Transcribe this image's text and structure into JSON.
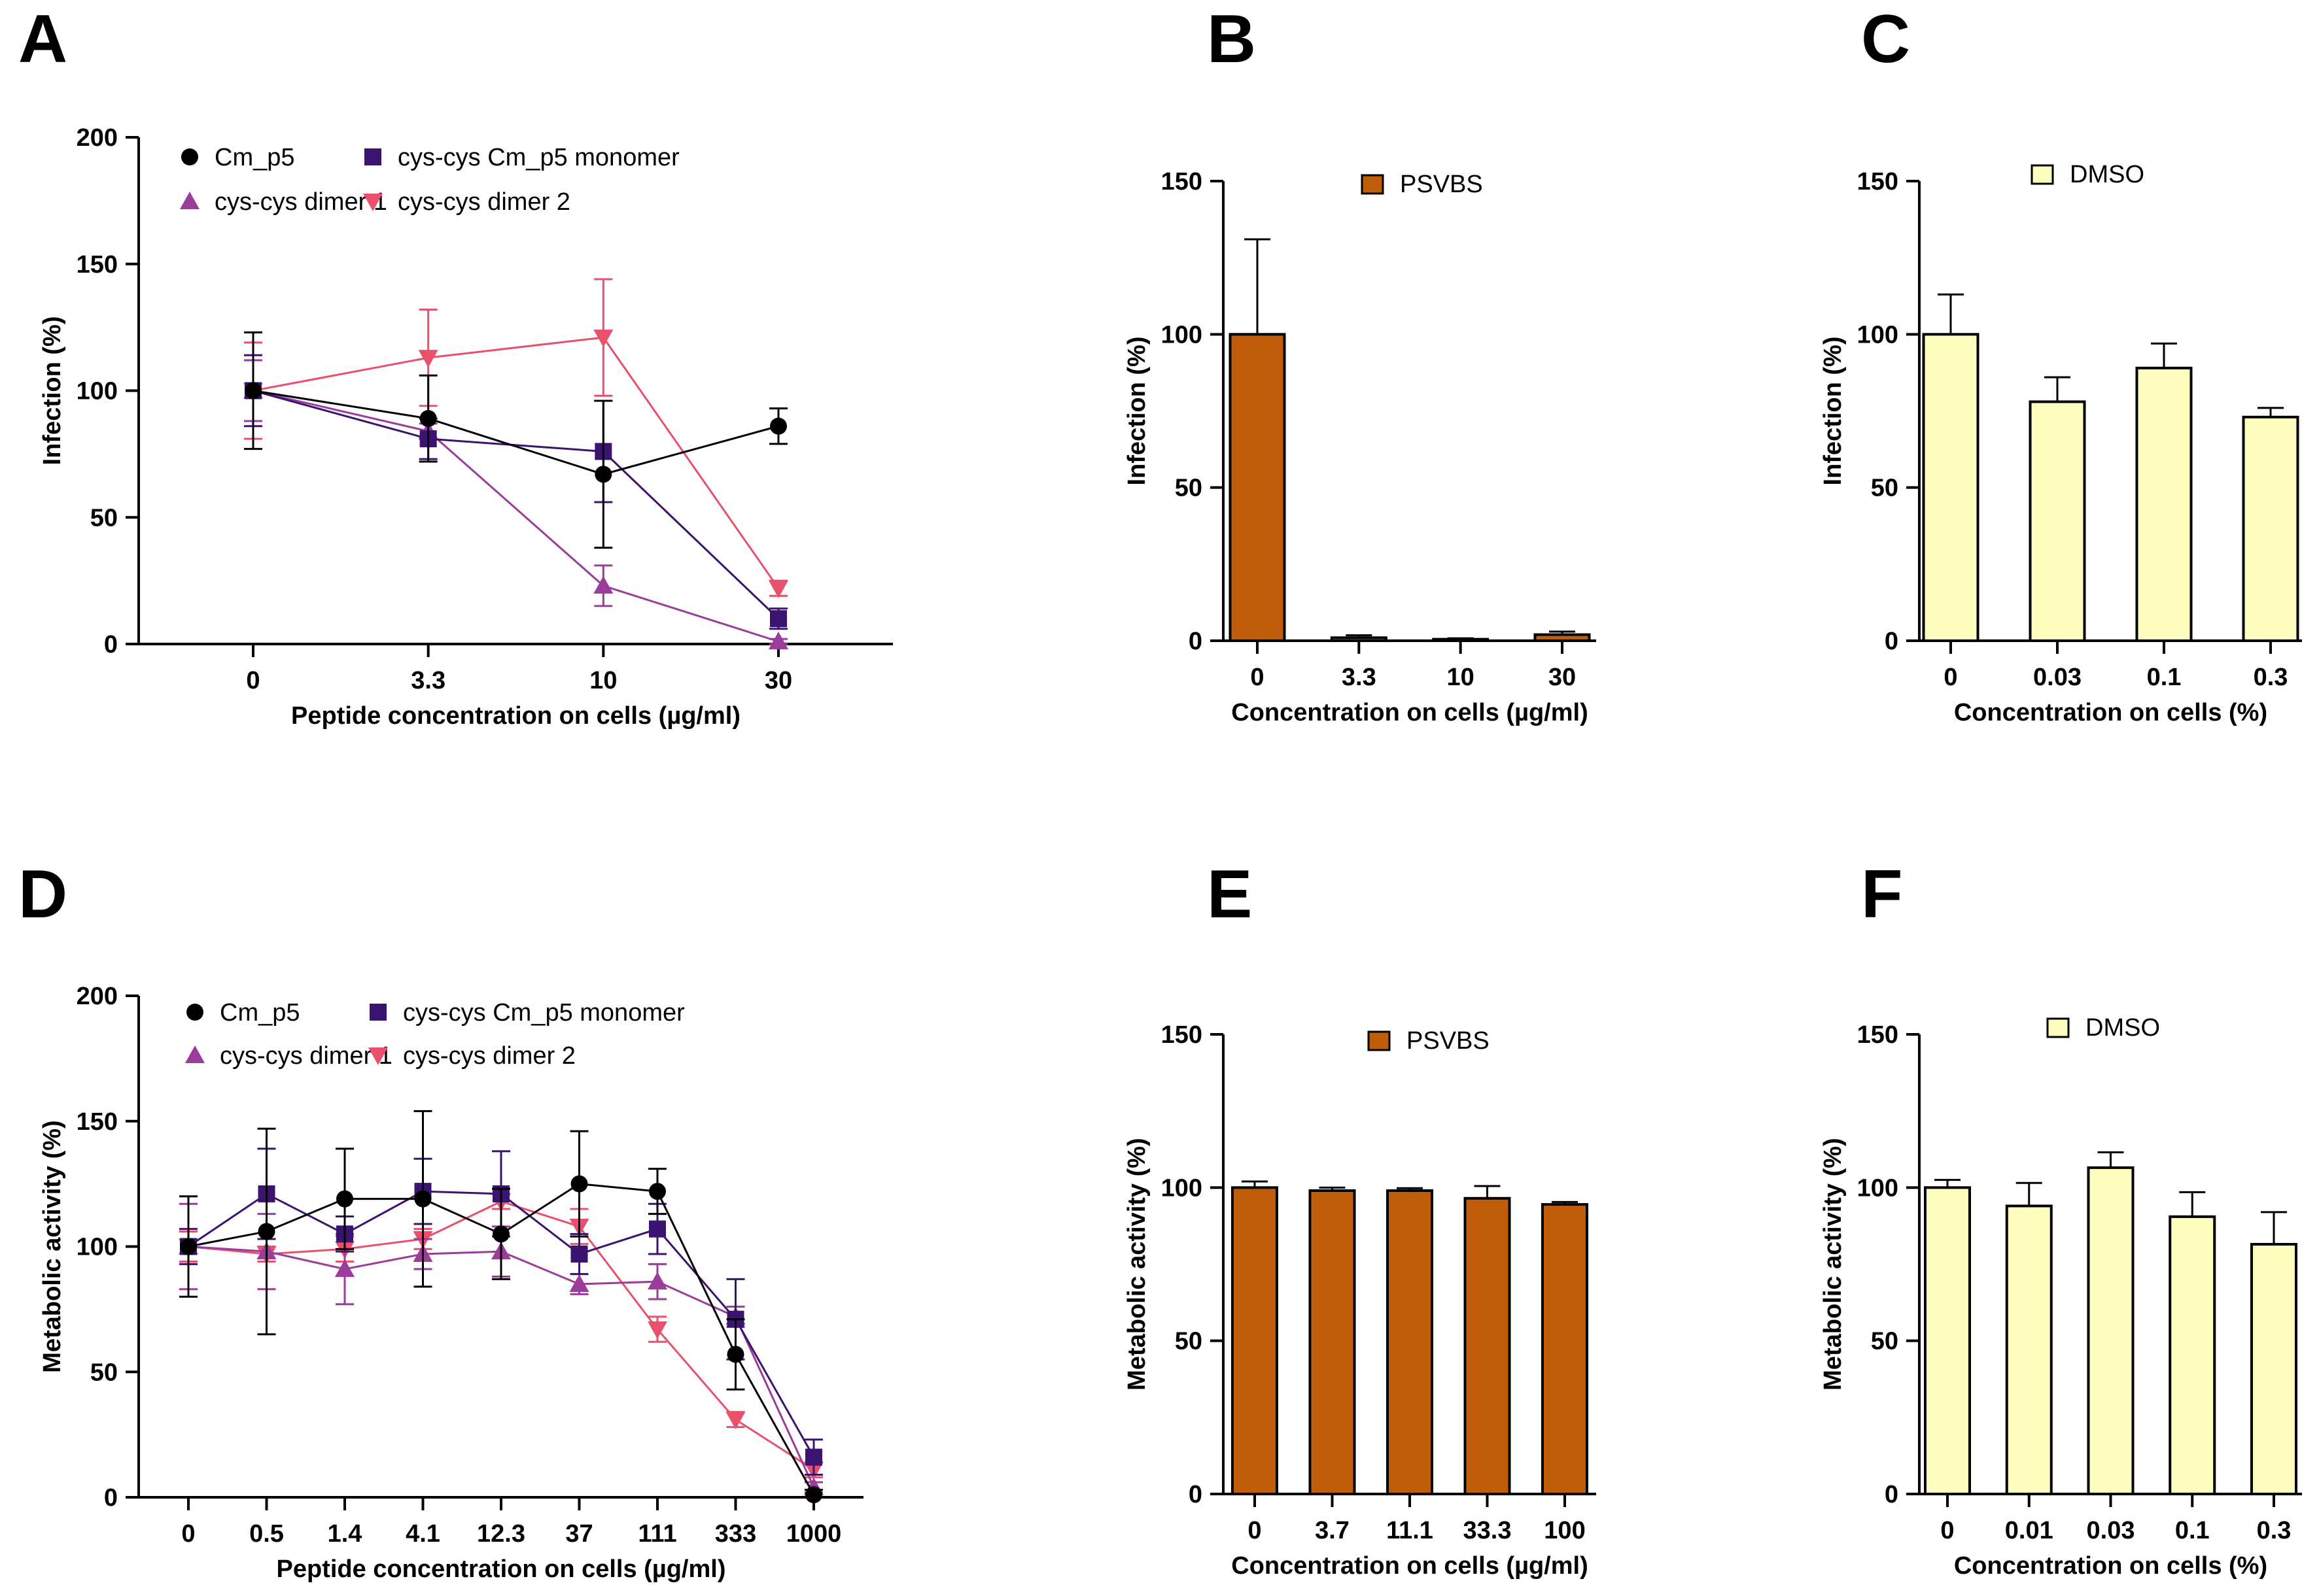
{
  "panels": {
    "A": "A",
    "B": "B",
    "C": "C",
    "D": "D",
    "E": "E",
    "F": "F"
  },
  "chart_data": [
    {
      "id": "A",
      "type": "line",
      "xlabel": "Peptide concentration on cells (µg/ml)",
      "ylabel": "Infection (%)",
      "categories": [
        "0",
        "3.3",
        "10",
        "30"
      ],
      "ylim": [
        0,
        200
      ],
      "yticks": [
        "0",
        "50",
        "100",
        "150",
        "200"
      ],
      "legend_position": "top-left",
      "series": [
        {
          "name": "Cm_p5",
          "marker": "circle",
          "color": "#000000",
          "values": [
            100,
            89,
            67,
            86
          ],
          "errors": [
            23,
            17,
            29,
            7
          ]
        },
        {
          "name": "cys-cys Cm_p5 monomer",
          "marker": "square",
          "color": "#3b1370",
          "values": [
            100,
            81,
            76,
            10
          ],
          "errors": [
            14,
            8,
            20,
            4
          ]
        },
        {
          "name": "cys-cys dimer 1",
          "marker": "triangle-up",
          "color": "#9b3c9a",
          "values": [
            100,
            84,
            23,
            1
          ],
          "errors": [
            12,
            3,
            8,
            1
          ]
        },
        {
          "name": "cys-cys dimer 2",
          "marker": "triangle-down",
          "color": "#e8506b",
          "values": [
            100,
            113,
            121,
            22
          ],
          "errors": [
            19,
            19,
            23,
            3
          ]
        }
      ]
    },
    {
      "id": "B",
      "type": "bar",
      "xlabel": "Concentration on cells (µg/ml)",
      "ylabel": "Infection (%)",
      "categories": [
        "0",
        "3.3",
        "10",
        "30"
      ],
      "values": [
        100,
        1,
        0.5,
        2
      ],
      "errors": [
        31,
        0.8,
        0.3,
        1
      ],
      "ylim": [
        0,
        150
      ],
      "yticks": [
        "0",
        "50",
        "100",
        "150"
      ],
      "legend": "PSVBS",
      "color": "#c05d0a"
    },
    {
      "id": "C",
      "type": "bar",
      "xlabel": "Concentration on cells (%)",
      "ylabel": "Infection (%)",
      "categories": [
        "0",
        "0.03",
        "0.1",
        "0.3"
      ],
      "values": [
        100,
        78,
        89,
        73
      ],
      "errors": [
        13,
        8,
        8,
        3
      ],
      "ylim": [
        0,
        150
      ],
      "yticks": [
        "0",
        "50",
        "100",
        "150"
      ],
      "legend": "DMSO",
      "color": "#fdfdc0"
    },
    {
      "id": "D",
      "type": "line",
      "xlabel": "Peptide concentration on cells (µg/ml)",
      "ylabel": "Metabolic activity (%)",
      "categories": [
        "0",
        "0.5",
        "1.4",
        "4.1",
        "12.3",
        "37",
        "111",
        "333",
        "1000"
      ],
      "ylim": [
        0,
        200
      ],
      "yticks": [
        "0",
        "50",
        "100",
        "150",
        "200"
      ],
      "legend_position": "top-left",
      "series": [
        {
          "name": "Cm_p5",
          "marker": "circle",
          "color": "#000000",
          "values": [
            100,
            106,
            119,
            119,
            105,
            125,
            122,
            57,
            1
          ],
          "errors": [
            20,
            41,
            20,
            35,
            18,
            21,
            9,
            14,
            2
          ]
        },
        {
          "name": "cys-cys Cm_p5 monomer",
          "marker": "square",
          "color": "#3b1370",
          "values": [
            100,
            121,
            105,
            122,
            121,
            97,
            107,
            71,
            16
          ],
          "errors": [
            7,
            18,
            7,
            13,
            17,
            8,
            10,
            16,
            7
          ]
        },
        {
          "name": "cys-cys dimer 1",
          "marker": "triangle-up",
          "color": "#9b3c9a",
          "values": [
            100,
            98,
            91,
            97,
            98,
            85,
            86,
            72,
            4
          ],
          "errors": [
            17,
            15,
            14,
            6,
            10,
            4,
            7,
            4,
            2
          ]
        },
        {
          "name": "cys-cys dimer 2",
          "marker": "triangle-down",
          "color": "#e8506b",
          "values": [
            100,
            97,
            99,
            103,
            118,
            108,
            67,
            31,
            11
          ],
          "errors": [
            6,
            3,
            5,
            4,
            3,
            7,
            5,
            3,
            3
          ]
        }
      ]
    },
    {
      "id": "E",
      "type": "bar",
      "xlabel": "Concentration on cells (µg/ml)",
      "ylabel": "Metabolic activity (%)",
      "categories": [
        "0",
        "3.7",
        "11.1",
        "33.3",
        "100"
      ],
      "values": [
        100,
        99,
        99,
        96.5,
        94.5
      ],
      "errors": [
        2,
        1,
        0.8,
        4,
        0.8
      ],
      "ylim": [
        0,
        150
      ],
      "yticks": [
        "0",
        "50",
        "100",
        "150"
      ],
      "legend": "PSVBS",
      "color": "#c05d0a"
    },
    {
      "id": "F",
      "type": "bar",
      "xlabel": "Concentration on cells (%)",
      "ylabel": "Metabolic activity (%)",
      "categories": [
        "0",
        "0.01",
        "0.03",
        "0.1",
        "0.3"
      ],
      "values": [
        100,
        94,
        106.5,
        90.5,
        81.5
      ],
      "errors": [
        2.5,
        7.5,
        5,
        8,
        10.5
      ],
      "ylim": [
        0,
        150
      ],
      "yticks": [
        "0",
        "50",
        "100",
        "150"
      ],
      "legend": "DMSO",
      "color": "#fdfdc0"
    }
  ]
}
